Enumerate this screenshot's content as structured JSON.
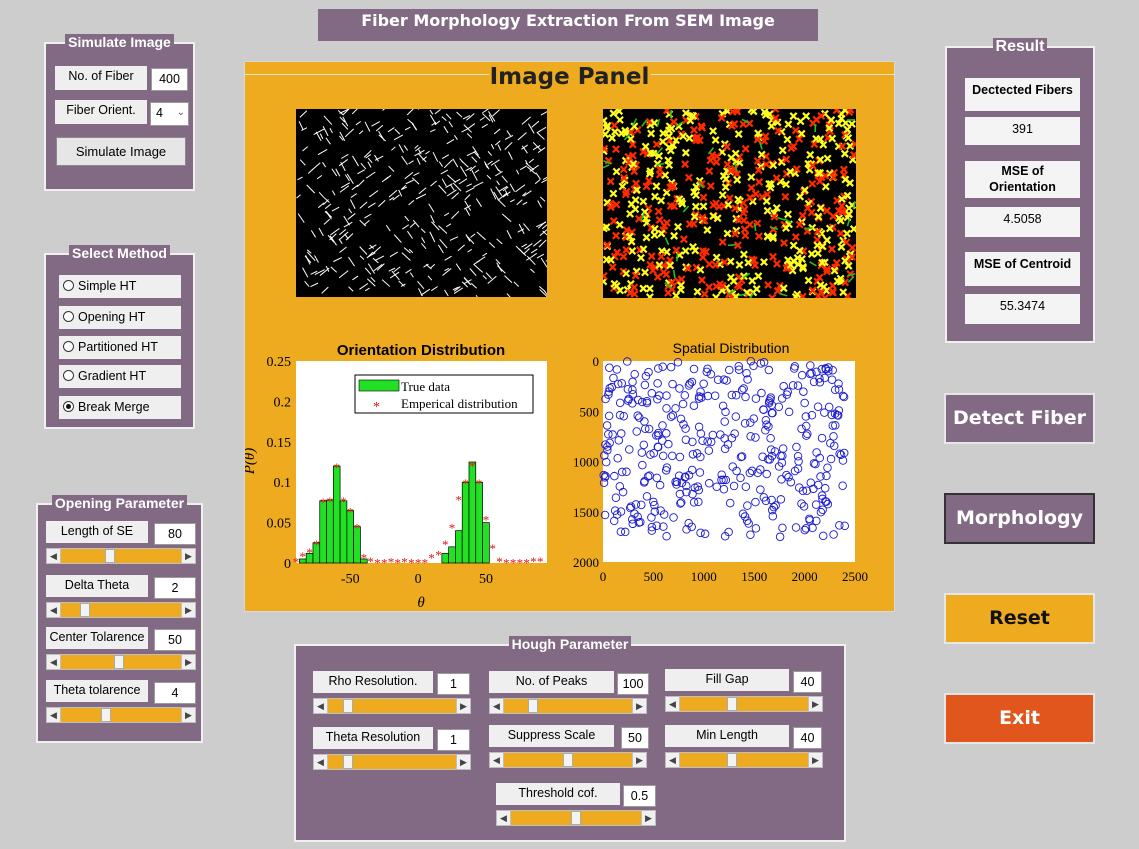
{
  "app_title": "Fiber Morphology Extraction From SEM Image",
  "simulate": {
    "title": "Simulate Image",
    "num_fiber_label": "No. of Fiber",
    "num_fiber_value": "400",
    "orient_label": "Fiber Orient.",
    "orient_value": "4",
    "simulate_button": "Simulate Image"
  },
  "method": {
    "title": "Select Method",
    "options": [
      "Simple HT",
      "Opening HT",
      "Partitioned HT",
      "Gradient HT",
      "Break Merge"
    ],
    "selected": "Break Merge"
  },
  "opening": {
    "title": "Opening Parameter",
    "params": [
      {
        "label": "Length of SE",
        "value": "80",
        "slider": 0.4
      },
      {
        "label": "Delta Theta",
        "value": "2",
        "slider": 0.17
      },
      {
        "label": "Center Tolarence",
        "value": "50",
        "slider": 0.48
      },
      {
        "label": "Theta tolarence",
        "value": "4",
        "slider": 0.36
      }
    ]
  },
  "image_panel": {
    "title": "Image Panel",
    "orientation": {
      "title": "Orientation Distribution",
      "ylabel": "P(θ)",
      "xlabel": "θ",
      "legend_true": "True data",
      "legend_emp": "Emperical distribution"
    },
    "spatial": {
      "title": "Spatial Distribution"
    }
  },
  "chart_data": [
    {
      "type": "bar",
      "title": "Orientation Distribution",
      "xlabel": "θ",
      "ylabel": "P(θ)",
      "xlim": [
        -90,
        95
      ],
      "ylim": [
        0,
        0.25
      ],
      "xticks": [
        -50,
        0,
        50
      ],
      "yticks": [
        0,
        0.05,
        0.1,
        0.15,
        0.2,
        0.25
      ],
      "series": [
        {
          "name": "True data",
          "x": [
            -85,
            -80,
            -75,
            -70,
            -65,
            -60,
            -55,
            -50,
            -45,
            -40,
            20,
            25,
            30,
            35,
            40,
            45,
            50
          ],
          "values": [
            0.005,
            0.012,
            0.025,
            0.077,
            0.078,
            0.12,
            0.077,
            0.065,
            0.045,
            0.005,
            0.012,
            0.02,
            0.04,
            0.1,
            0.125,
            0.1,
            0.05
          ]
        },
        {
          "name": "Emperical distribution",
          "x": [
            -90,
            -85,
            -80,
            -75,
            -70,
            -65,
            -60,
            -55,
            -50,
            -45,
            -40,
            -35,
            -30,
            -25,
            -20,
            -15,
            -10,
            -5,
            0,
            5,
            10,
            15,
            20,
            25,
            30,
            35,
            40,
            45,
            50,
            55,
            60,
            65,
            70,
            75,
            80,
            85,
            90
          ],
          "values": [
            0.003,
            0.01,
            0.015,
            0.025,
            0.077,
            0.078,
            0.12,
            0.078,
            0.065,
            0.045,
            0.008,
            0.004,
            0.002,
            0.002,
            0.003,
            0.002,
            0.003,
            0.002,
            0.002,
            0.002,
            0.008,
            0.012,
            0.025,
            0.045,
            0.08,
            0.1,
            0.122,
            0.1,
            0.055,
            0.02,
            0.004,
            0.002,
            0.002,
            0.002,
            0.002,
            0.004,
            0.004
          ]
        }
      ]
    },
    {
      "type": "scatter",
      "title": "Spatial Distribution",
      "xlim": [
        0,
        2500
      ],
      "ylim": [
        2000,
        0
      ],
      "xticks": [
        0,
        500,
        1000,
        1500,
        2000,
        2500
      ],
      "yticks": [
        0,
        500,
        1000,
        1500,
        2000
      ],
      "points": 391,
      "x_extent": [
        0,
        2400
      ],
      "y_extent": [
        0,
        1750
      ]
    }
  ],
  "result": {
    "title": "Result",
    "detected_label": "Dectected Fibers",
    "detected_value": "391",
    "mse_orient_label": "MSE of Orientation",
    "mse_orient_value": "4.5058",
    "mse_centroid_label": "MSE of Centroid",
    "mse_centroid_value": "55.3474"
  },
  "actions": {
    "detect": "Detect Fiber",
    "morphology": "Morphology",
    "reset": "Reset",
    "exit": "Exit"
  },
  "hough": {
    "title": "Hough Parameter",
    "params": [
      {
        "label": "Rho Resolution.",
        "value": "1",
        "slider": 0.13
      },
      {
        "label": "No. of Peaks",
        "value": "100",
        "slider": 0.2
      },
      {
        "label": "Fill Gap",
        "value": "40",
        "slider": 0.4
      },
      {
        "label": "Theta Resolution",
        "value": "1",
        "slider": 0.13
      },
      {
        "label": "Suppress Scale",
        "value": "50",
        "slider": 0.5
      },
      {
        "label": "Min Length",
        "value": "40",
        "slider": 0.4
      },
      {
        "label": "Threshold cof.",
        "value": "0.5",
        "slider": 0.5
      }
    ]
  },
  "colors": {
    "panel_purple": "#836a84",
    "accent_orange": "#efab1f",
    "exit_red": "#e0561d",
    "detected_red": "#ff2a00",
    "detected_yellow": "#ffff22"
  }
}
